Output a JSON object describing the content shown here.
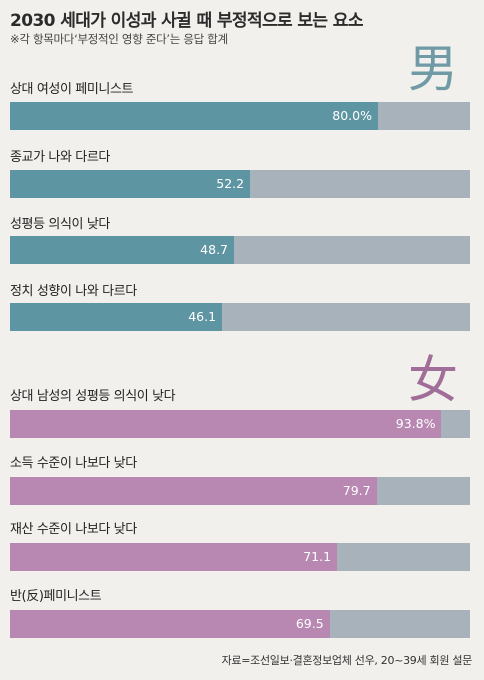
{
  "header": {
    "title": "2030 세대가 이성과 사귈 때 부정적으로 보는 요소",
    "subtitle": "※각 항목마다‘부정적인 영향 준다’는 응답 합계"
  },
  "sections": {
    "male_label": "男",
    "female_label": "女"
  },
  "colors": {
    "male_bar": "#5e95a3",
    "female_bar": "#b888b2",
    "track": "#a7b2bb",
    "background": "#f2f0ec"
  },
  "source": "자료=조선일보·결혼정보업체 선우, 20~39세 회원 설문",
  "chart_data": {
    "type": "bar",
    "orientation": "horizontal",
    "scale_max": 100,
    "series": [
      {
        "name": "男",
        "categories": [
          "상대 여성이 페미니스트",
          "종교가 나와 다르다",
          "성평등 의식이 낮다",
          "정치 성향이 나와 다르다"
        ],
        "values": [
          80.0,
          52.2,
          48.7,
          46.1
        ],
        "value_labels": [
          "80.0%",
          "52.2",
          "48.7",
          "46.1"
        ]
      },
      {
        "name": "女",
        "categories": [
          "상대 남성의 성평등 의식이 낮다",
          "소득 수준이 나보다 낮다",
          "재산 수준이 나보다 낮다",
          "반(反)페미니스트"
        ],
        "values": [
          93.8,
          79.7,
          71.1,
          69.5
        ],
        "value_labels": [
          "93.8%",
          "79.7",
          "71.1",
          "69.5"
        ]
      }
    ]
  }
}
